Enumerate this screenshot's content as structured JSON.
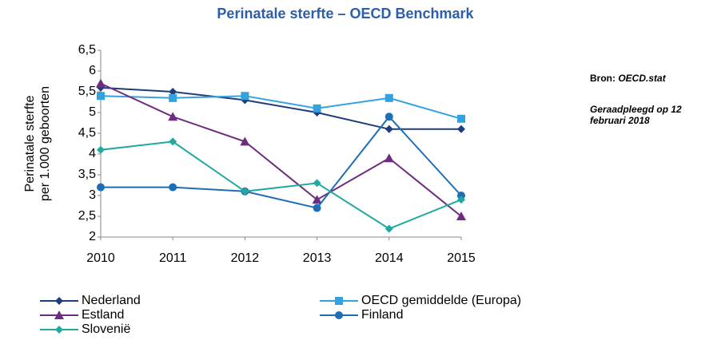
{
  "chart_data": {
    "type": "line",
    "title": "Perinatale sterfte – OECD Benchmark",
    "y_label": [
      "Perinatale sterfte",
      "per 1.000 geboorten"
    ],
    "categories": [
      "2010",
      "2011",
      "2012",
      "2013",
      "2014",
      "2015"
    ],
    "ylim": [
      2,
      6.5
    ],
    "yticks": [
      2,
      {
        "value": 2.5,
        "label": "2,5"
      },
      3,
      {
        "value": 3.5,
        "label": "3,5"
      },
      4,
      {
        "value": 4.5,
        "label": "4,5"
      },
      5,
      {
        "value": 5.5,
        "label": "5,5"
      },
      6,
      {
        "value": 6.5,
        "label": "6,5"
      }
    ],
    "grid": false,
    "series": [
      {
        "name": "Nederland",
        "color": "#1f3d7a",
        "marker": "diamond",
        "values": [
          5.6,
          5.5,
          5.3,
          5.0,
          4.6,
          4.6
        ]
      },
      {
        "name": "OECD gemiddelde (Europa)",
        "color": "#33a3df",
        "marker": "square",
        "values": [
          5.4,
          5.35,
          5.4,
          5.1,
          5.35,
          4.85
        ]
      },
      {
        "name": "Estland",
        "color": "#6e2c80",
        "marker": "triangle",
        "values": [
          5.7,
          4.9,
          4.3,
          2.9,
          3.9,
          2.5
        ]
      },
      {
        "name": "Finland",
        "color": "#1f6db4",
        "marker": "circle",
        "values": [
          3.2,
          3.2,
          3.1,
          2.7,
          4.9,
          3.0
        ]
      },
      {
        "name": "Slovenië",
        "color": "#21a9a1",
        "marker": "diamond",
        "values": [
          4.1,
          4.3,
          3.1,
          3.3,
          2.2,
          2.9
        ]
      }
    ],
    "source_label": "Bron:",
    "source": "OECD.stat",
    "accessed": "Geraadpleegd op 12 februari 2018"
  }
}
